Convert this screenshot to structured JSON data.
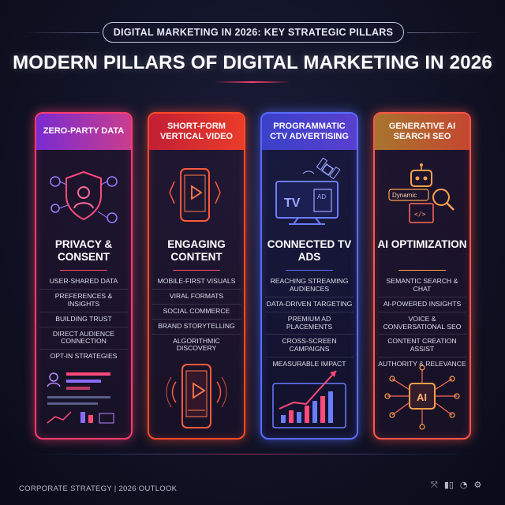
{
  "header": {
    "pill_title": "DIGITAL MARKETING IN 2026: KEY STRATEGIC PILLARS",
    "main_title": "MODERN PILLARS OF DIGITAL MARKETING IN 2026"
  },
  "pillars": [
    {
      "heading": "ZERO-PARTY DATA",
      "subtitle": "PRIVACY & CONSENT",
      "icon": "shield-user-icon",
      "accent": "#ff3d6e",
      "items": [
        "USER-SHARED DATA",
        "PREFERENCES & INSIGHTS",
        "BUILDING TRUST",
        "DIRECT AUDIENCE CONNECTION",
        "OPT-IN STRATEGIES"
      ],
      "illustration": "dashboard-profile-icon"
    },
    {
      "heading": "SHORT-FORM VERTICAL VIDEO",
      "subtitle": "ENGAGING CONTENT",
      "icon": "smartphone-play-icon",
      "accent": "#ff4a2a",
      "items": [
        "MOBILE-FIRST VISUALS",
        "VIRAL FORMATS",
        "SOCIAL COMMERCE",
        "BRAND STORYTELLING",
        "ALGORITHMIC DISCOVERY"
      ],
      "illustration": "phone-video-player-icon"
    },
    {
      "heading": "PROGRAMMATIC CTV ADVERTISING",
      "subtitle": "CONNECTED TV ADS",
      "icon": "tv-satellite-icon",
      "tv_label": "TV",
      "ad_label": "AD",
      "accent": "#5a6cff",
      "items": [
        "REACHING STREAMING AUDIENCES",
        "DATA-DRIVEN TARGETING",
        "PREMIUM AD PLACEMENTS",
        "CROSS-SCREEN CAMPAIGNS",
        "MEASURABLE IMPACT"
      ],
      "illustration": "growth-chart-icon"
    },
    {
      "heading": "GENERATIVE AI SEARCH SEO",
      "subtitle": "AI OPTIMIZATION",
      "icon": "robot-search-icon",
      "dynamic_label": "Dynamic",
      "accent": "#ff5548",
      "items": [
        "SEMANTIC SEARCH & CHAT",
        "AI-POWERED INSIGHTS",
        "VOICE & CONVERSATIONAL SEO",
        "CONTENT CREATION ASSIST",
        "AUTHORITY & RELEVANCE"
      ],
      "illustration": "ai-chip-icon",
      "chip_label": "AI"
    }
  ],
  "footer": {
    "left_text": "CORPORATE STRATEGY  |  2026 OUTLOOK",
    "icons": [
      "network-icon",
      "bar-chart-icon",
      "pie-chart-icon",
      "gear-icon"
    ]
  }
}
